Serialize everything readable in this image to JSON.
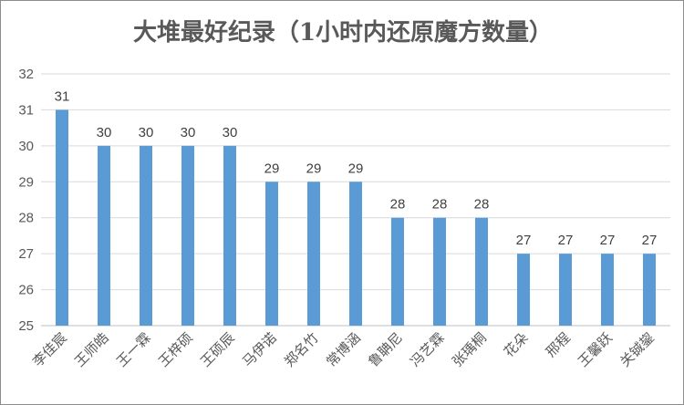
{
  "chart_data": {
    "type": "bar",
    "title": "大堆最好纪录（1小时内还原魔方数量）",
    "categories": [
      "李佳宸",
      "王师皓",
      "王一霖",
      "王梓硕",
      "王硕辰",
      "马伊诺",
      "郑名竹",
      "常博涵",
      "鲁聃尼",
      "冯艺霖",
      "张瑀桐",
      "花朵",
      "邢程",
      "王馨跃",
      "关铖鋆"
    ],
    "values": [
      31,
      30,
      30,
      30,
      30,
      29,
      29,
      29,
      28,
      28,
      28,
      27,
      27,
      27,
      27
    ],
    "ylim": [
      25,
      32
    ],
    "yticks": [
      25,
      26,
      27,
      28,
      29,
      30,
      31,
      32
    ],
    "grid": true,
    "legend": "none",
    "bar_color": "#5b9bd5"
  }
}
